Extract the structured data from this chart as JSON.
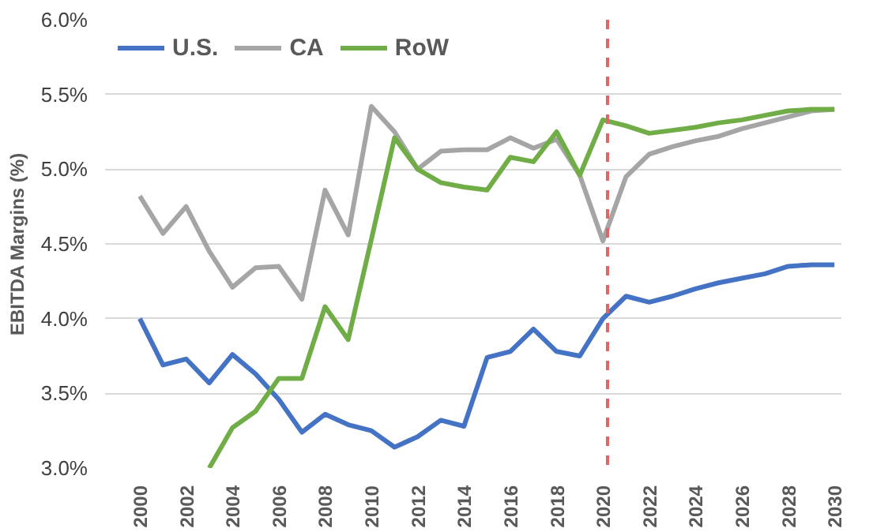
{
  "chart_data": {
    "type": "line",
    "ylabel": "EBITDA Margins (%)",
    "x": [
      2000,
      2001,
      2002,
      2003,
      2004,
      2005,
      2006,
      2007,
      2008,
      2009,
      2010,
      2011,
      2012,
      2013,
      2014,
      2015,
      2016,
      2017,
      2018,
      2019,
      2020,
      2021,
      2022,
      2023,
      2024,
      2025,
      2026,
      2027,
      2028,
      2029,
      2030
    ],
    "series": [
      {
        "name": "U.S.",
        "color": "#4472c4",
        "values": [
          4.0,
          3.69,
          3.73,
          3.57,
          3.76,
          3.63,
          3.46,
          3.24,
          3.36,
          3.29,
          3.25,
          3.14,
          3.21,
          3.32,
          3.28,
          3.74,
          3.78,
          3.93,
          3.78,
          3.75,
          4.0,
          4.15,
          4.11,
          4.15,
          4.2,
          4.24,
          4.27,
          4.3,
          4.35,
          4.36,
          4.36
        ]
      },
      {
        "name": "CA",
        "color": "#a5a5a5",
        "values": [
          4.82,
          4.57,
          4.75,
          4.45,
          4.21,
          4.34,
          4.35,
          4.13,
          4.86,
          4.56,
          5.42,
          5.25,
          5.0,
          5.12,
          5.13,
          5.13,
          5.21,
          5.14,
          5.2,
          4.96,
          4.52,
          4.95,
          5.1,
          5.15,
          5.19,
          5.22,
          5.27,
          5.31,
          5.35,
          5.39,
          5.4
        ]
      },
      {
        "name": "RoW",
        "color": "#70ad47",
        "values": [
          null,
          null,
          null,
          3.0,
          3.27,
          3.38,
          3.6,
          3.6,
          4.08,
          3.86,
          4.53,
          5.21,
          5.0,
          4.91,
          4.88,
          4.86,
          5.08,
          5.05,
          5.25,
          4.96,
          5.33,
          5.29,
          5.24,
          5.26,
          5.28,
          5.31,
          5.33,
          5.36,
          5.39,
          5.4,
          5.4
        ]
      }
    ],
    "xlim": [
      1998.5,
      2030.3
    ],
    "ylim": [
      3.0,
      6.0
    ],
    "xticks": [
      2000,
      2002,
      2004,
      2006,
      2008,
      2010,
      2012,
      2014,
      2016,
      2018,
      2020,
      2022,
      2024,
      2026,
      2028,
      2030
    ],
    "yticks": [
      {
        "value": 3.0,
        "label": "3.0%"
      },
      {
        "value": 3.5,
        "label": "3.5%"
      },
      {
        "value": 4.0,
        "label": "4.0%"
      },
      {
        "value": 4.5,
        "label": "4.5%"
      },
      {
        "value": 5.0,
        "label": "5.0%"
      },
      {
        "value": 5.5,
        "label": "5.5%"
      },
      {
        "value": 6.0,
        "label": "6.0%"
      }
    ],
    "ref_lines": [
      {
        "axis": "x",
        "value": 2020.2,
        "color": "#e06666",
        "line_style": "dashed"
      }
    ],
    "grid": "y",
    "legend": "top left",
    "marker": "none",
    "line_style": "solid"
  }
}
